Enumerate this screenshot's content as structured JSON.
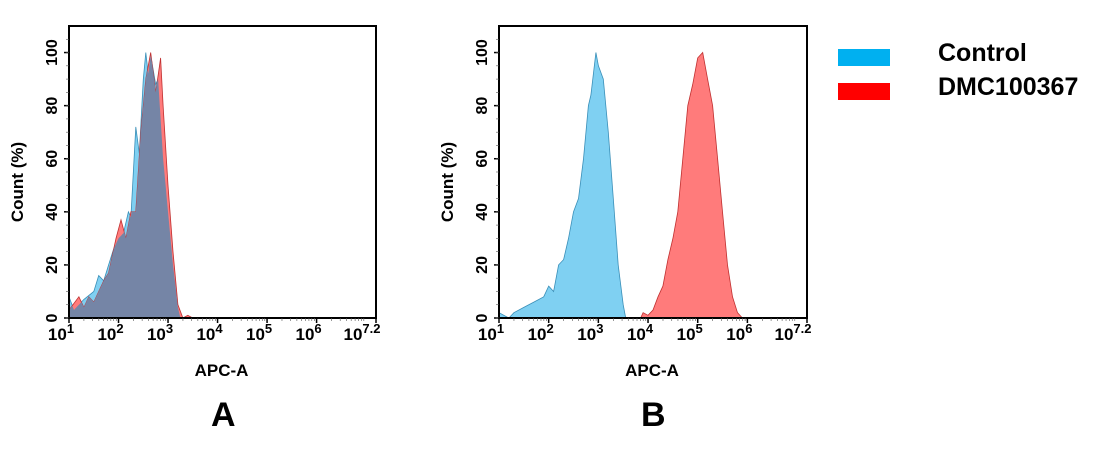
{
  "chart_data": [
    {
      "type": "area",
      "panel_label": "A",
      "xlabel": "APC-A",
      "ylabel": "Count  (%)",
      "x_scale": "log10",
      "xlim": [
        1,
        7.2
      ],
      "ylim": [
        0,
        110
      ],
      "x_tick_labels": [
        {
          "base": "10",
          "exp": "1"
        },
        {
          "base": "10",
          "exp": "2"
        },
        {
          "base": "10",
          "exp": "3"
        },
        {
          "base": "10",
          "exp": "4"
        },
        {
          "base": "10",
          "exp": "5"
        },
        {
          "base": "10",
          "exp": "6"
        },
        {
          "base": "10",
          "exp": "7.2"
        }
      ],
      "y_ticks": [
        "0",
        "20",
        "40",
        "60",
        "80",
        "100"
      ],
      "grid": false,
      "series": [
        {
          "name": "Control",
          "color": "#7fd0f2",
          "points": [
            [
              1,
              8
            ],
            [
              1.1,
              3
            ],
            [
              1.3,
              7
            ],
            [
              1.5,
              10
            ],
            [
              1.6,
              16
            ],
            [
              1.7,
              14
            ],
            [
              1.8,
              20
            ],
            [
              1.9,
              26
            ],
            [
              2.0,
              30
            ],
            [
              2.1,
              32
            ],
            [
              2.2,
              40
            ],
            [
              2.25,
              38
            ],
            [
              2.35,
              72
            ],
            [
              2.42,
              62
            ],
            [
              2.5,
              90
            ],
            [
              2.55,
              100
            ],
            [
              2.6,
              92
            ],
            [
              2.65,
              99
            ],
            [
              2.75,
              88
            ],
            [
              2.8,
              90
            ],
            [
              2.9,
              60
            ],
            [
              3.0,
              40
            ],
            [
              3.1,
              20
            ],
            [
              3.2,
              4
            ],
            [
              3.25,
              0
            ],
            [
              7.2,
              0
            ]
          ]
        },
        {
          "name": "DMC100367",
          "color": "#ff7b7b",
          "points": [
            [
              1,
              3
            ],
            [
              1.2,
              8
            ],
            [
              1.3,
              4
            ],
            [
              1.4,
              8
            ],
            [
              1.5,
              6
            ],
            [
              1.7,
              14
            ],
            [
              1.8,
              17
            ],
            [
              1.95,
              30
            ],
            [
              2.05,
              37
            ],
            [
              2.15,
              30
            ],
            [
              2.25,
              40
            ],
            [
              2.35,
              40
            ],
            [
              2.45,
              70
            ],
            [
              2.55,
              90
            ],
            [
              2.65,
              100
            ],
            [
              2.75,
              85
            ],
            [
              2.85,
              98
            ],
            [
              2.9,
              80
            ],
            [
              3.0,
              50
            ],
            [
              3.1,
              25
            ],
            [
              3.2,
              5
            ],
            [
              3.3,
              0
            ],
            [
              3.4,
              1
            ],
            [
              3.5,
              0
            ],
            [
              7.2,
              0
            ]
          ]
        }
      ]
    },
    {
      "type": "area",
      "panel_label": "B",
      "xlabel": "APC-A",
      "ylabel": "Count  (%)",
      "x_scale": "log10",
      "xlim": [
        1,
        7.2
      ],
      "ylim": [
        0,
        110
      ],
      "x_tick_labels": [
        {
          "base": "10",
          "exp": "1"
        },
        {
          "base": "10",
          "exp": "2"
        },
        {
          "base": "10",
          "exp": "3"
        },
        {
          "base": "10",
          "exp": "4"
        },
        {
          "base": "10",
          "exp": "5"
        },
        {
          "base": "10",
          "exp": "6"
        },
        {
          "base": "10",
          "exp": "7.2"
        }
      ],
      "y_ticks": [
        "0",
        "20",
        "40",
        "60",
        "80",
        "100"
      ],
      "grid": false,
      "series": [
        {
          "name": "Control",
          "color": "#7fd0f2",
          "points": [
            [
              1,
              2
            ],
            [
              1.2,
              0
            ],
            [
              1.3,
              2
            ],
            [
              1.5,
              4
            ],
            [
              1.7,
              6
            ],
            [
              1.9,
              8
            ],
            [
              2.0,
              12
            ],
            [
              2.1,
              10
            ],
            [
              2.2,
              20
            ],
            [
              2.3,
              22
            ],
            [
              2.4,
              30
            ],
            [
              2.5,
              40
            ],
            [
              2.6,
              45
            ],
            [
              2.7,
              60
            ],
            [
              2.8,
              80
            ],
            [
              2.85,
              84
            ],
            [
              2.95,
              100
            ],
            [
              3.0,
              95
            ],
            [
              3.1,
              90
            ],
            [
              3.2,
              70
            ],
            [
              3.3,
              45
            ],
            [
              3.4,
              20
            ],
            [
              3.5,
              5
            ],
            [
              3.55,
              0
            ],
            [
              7.2,
              0
            ]
          ]
        },
        {
          "name": "DMC100367",
          "color": "#ff7b7b",
          "points": [
            [
              1,
              0
            ],
            [
              3.85,
              0
            ],
            [
              3.9,
              2
            ],
            [
              4.0,
              1
            ],
            [
              4.1,
              3
            ],
            [
              4.2,
              8
            ],
            [
              4.3,
              12
            ],
            [
              4.4,
              22
            ],
            [
              4.5,
              30
            ],
            [
              4.6,
              40
            ],
            [
              4.7,
              60
            ],
            [
              4.8,
              80
            ],
            [
              4.9,
              88
            ],
            [
              5.0,
              98
            ],
            [
              5.1,
              100
            ],
            [
              5.2,
              90
            ],
            [
              5.3,
              80
            ],
            [
              5.4,
              60
            ],
            [
              5.5,
              40
            ],
            [
              5.6,
              20
            ],
            [
              5.7,
              8
            ],
            [
              5.8,
              2
            ],
            [
              5.9,
              0
            ],
            [
              7.2,
              0
            ]
          ]
        }
      ]
    }
  ],
  "legend": {
    "placement": "right",
    "items": [
      {
        "label": "Control",
        "color": "#00b0f0"
      },
      {
        "label": "DMC100367",
        "color": "#ff0000"
      }
    ]
  },
  "overlap_color": "#7585a6"
}
